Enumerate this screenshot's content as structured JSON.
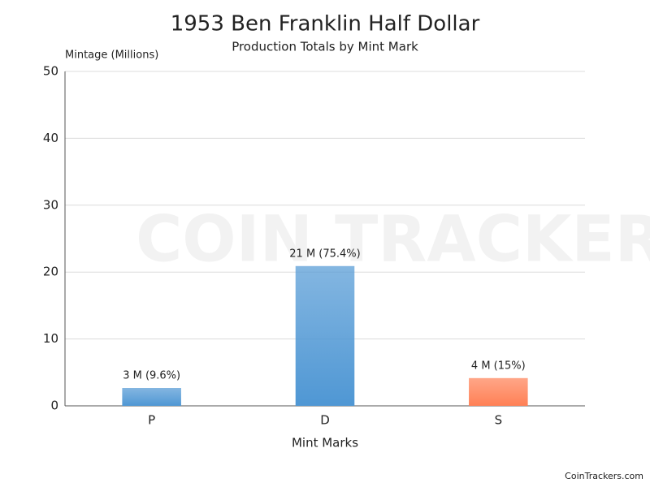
{
  "chart_data": {
    "type": "bar",
    "title": "1953 Ben Franklin Half Dollar",
    "subtitle": "Production Totals by Mint Mark",
    "y_label": "Mintage (Millions)",
    "x_label": "Mint Marks",
    "categories": [
      "P",
      "D",
      "S"
    ],
    "values": [
      2.67,
      20.9,
      4.15
    ],
    "value_labels": [
      "3 M (9.6%)",
      "21 M (75.4%)",
      "4 M (15%)"
    ],
    "colors": [
      "#4f97d4",
      "#4f97d4",
      "#ff8055"
    ],
    "ylim": [
      0,
      50
    ],
    "yticks": [
      0,
      10,
      20,
      30,
      40,
      50
    ],
    "grid": true,
    "watermark": "COIN TRACKERS",
    "credit": "CoinTrackers.com"
  }
}
